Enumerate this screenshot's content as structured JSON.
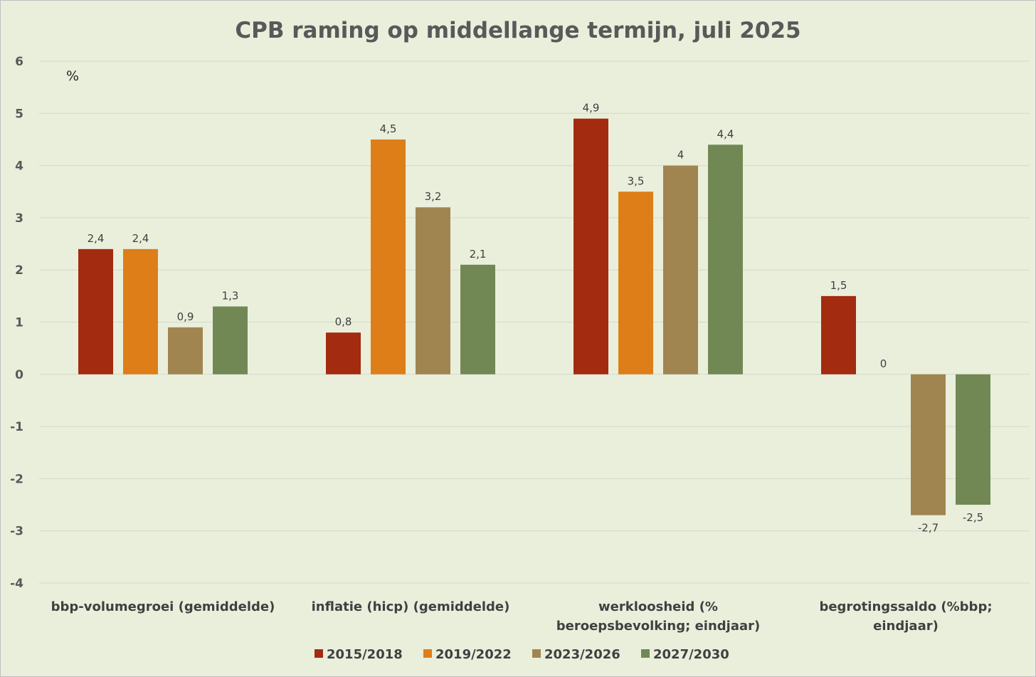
{
  "chart_data": {
    "type": "bar",
    "title": "CPB raming op middellange termijn, juli 2025",
    "unit_label": "%",
    "xlabel": "",
    "ylabel": "",
    "ylim": [
      -4,
      6
    ],
    "yticks": [
      6,
      5,
      4,
      3,
      2,
      1,
      0,
      -1,
      -2,
      -3,
      -4
    ],
    "grid": true,
    "legend_position": "bottom",
    "categories": [
      [
        "bbp-volumegroei (gemiddelde)"
      ],
      [
        "inflatie (hicp) (gemiddelde)"
      ],
      [
        "werkloosheid (%",
        "beroepsbevolking; eindjaar)"
      ],
      [
        "begrotingssaldo (%bbp;",
        "eindjaar)"
      ]
    ],
    "series": [
      {
        "name": "2015/2018",
        "color": "#a32b10",
        "values": [
          2.4,
          0.8,
          4.9,
          1.5
        ],
        "labels": [
          "2,4",
          "0,8",
          "4,9",
          "1,5"
        ]
      },
      {
        "name": "2019/2022",
        "color": "#de7e18",
        "values": [
          2.4,
          4.5,
          3.5,
          0
        ],
        "labels": [
          "2,4",
          "4,5",
          "3,5",
          "0"
        ]
      },
      {
        "name": "2023/2026",
        "color": "#a08550",
        "values": [
          0.9,
          3.2,
          4.0,
          -2.7
        ],
        "labels": [
          "0,9",
          "3,2",
          "4",
          "-2,7"
        ]
      },
      {
        "name": "2027/2030",
        "color": "#718855",
        "values": [
          1.3,
          2.1,
          4.4,
          -2.5
        ],
        "labels": [
          "1,3",
          "2,1",
          "4,4",
          "-2,5"
        ]
      }
    ]
  }
}
